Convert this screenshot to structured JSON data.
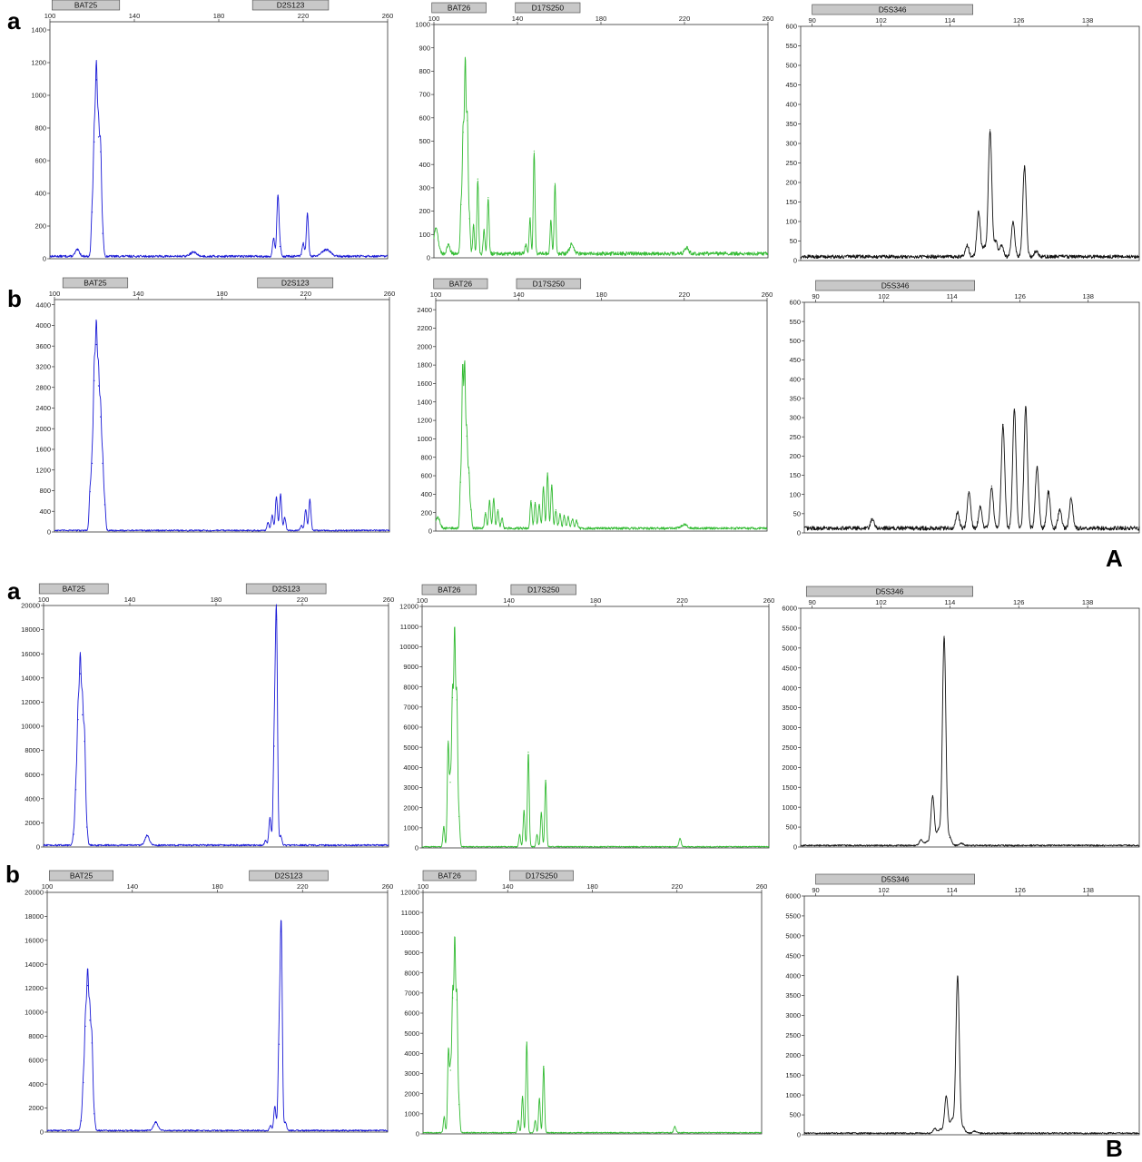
{
  "figure_labels": {
    "part_a": "A",
    "part_b": "B",
    "panels": [
      {
        "id": "A-a",
        "text": "a"
      },
      {
        "id": "A-b",
        "text": "b"
      },
      {
        "id": "B-a",
        "text": "a"
      },
      {
        "id": "B-b",
        "text": "b"
      }
    ]
  },
  "colors": {
    "blue": "#1a1ad6",
    "green": "#33bb33",
    "black": "#111111",
    "marker_fill": "#c8c8c8",
    "marker_stroke": "#555555"
  },
  "chart_data": [
    {
      "id": "A-a-1",
      "type": "line",
      "color": "blue",
      "xlim": [
        100,
        260
      ],
      "ylim": [
        0,
        1450
      ],
      "xticks": [
        100,
        140,
        180,
        220,
        260
      ],
      "yticks": [
        0,
        200,
        400,
        600,
        800,
        1000,
        1200,
        1400
      ],
      "markers": [
        {
          "label": "BAT25",
          "start": 101,
          "end": 133
        },
        {
          "label": "D2S123",
          "start": 196,
          "end": 232
        }
      ],
      "baseline": 15,
      "peaks": [
        [
          113,
          40,
          1.0
        ],
        [
          120,
          270,
          0.45
        ],
        [
          121,
          700,
          0.45
        ],
        [
          122,
          1080,
          0.45
        ],
        [
          123,
          730,
          0.45
        ],
        [
          124,
          640,
          0.45
        ],
        [
          125,
          140,
          0.45
        ],
        [
          168,
          25,
          1.5
        ],
        [
          206,
          110,
          0.5
        ],
        [
          208,
          370,
          0.5
        ],
        [
          209,
          60,
          0.5
        ],
        [
          220,
          80,
          0.5
        ],
        [
          222,
          260,
          0.5
        ],
        [
          231,
          40,
          2.0
        ]
      ]
    },
    {
      "id": "A-a-2",
      "type": "line",
      "color": "green",
      "xlim": [
        100,
        260
      ],
      "ylim": [
        0,
        1000
      ],
      "xticks": [
        100,
        140,
        180,
        220,
        260
      ],
      "yticks": [
        0,
        100,
        200,
        300,
        400,
        500,
        600,
        700,
        800,
        900,
        1000
      ],
      "markers": [
        {
          "label": "BAT26",
          "start": 99,
          "end": 125
        },
        {
          "label": "D17S250",
          "start": 139,
          "end": 170
        }
      ],
      "baseline": 18,
      "peaks": [
        [
          101,
          110,
          1.0
        ],
        [
          107,
          40,
          0.7
        ],
        [
          113,
          210,
          0.4
        ],
        [
          114,
          520,
          0.4
        ],
        [
          115,
          800,
          0.4
        ],
        [
          116,
          570,
          0.4
        ],
        [
          117,
          150,
          0.4
        ],
        [
          119,
          120,
          0.4
        ],
        [
          121,
          320,
          0.4
        ],
        [
          124,
          100,
          0.4
        ],
        [
          126,
          240,
          0.4
        ],
        [
          144,
          40,
          0.4
        ],
        [
          146,
          150,
          0.4
        ],
        [
          148,
          440,
          0.4
        ],
        [
          156,
          140,
          0.4
        ],
        [
          158,
          300,
          0.4
        ],
        [
          166,
          40,
          1.0
        ],
        [
          221,
          25,
          1.0
        ]
      ]
    },
    {
      "id": "A-a-3",
      "type": "line",
      "color": "black",
      "xlim": [
        88,
        147
      ],
      "ylim": [
        0,
        600
      ],
      "xticks": [
        90,
        102,
        114,
        126,
        138
      ],
      "yticks": [
        0,
        50,
        100,
        150,
        200,
        250,
        300,
        350,
        400,
        450,
        500,
        550,
        600
      ],
      "markers": [
        {
          "label": "D5S346",
          "start": 90,
          "end": 118
        }
      ],
      "baseline": 10,
      "peaks": [
        [
          117,
          30,
          0.3
        ],
        [
          119,
          115,
          0.3
        ],
        [
          120,
          25,
          0.3
        ],
        [
          121,
          325,
          0.3
        ],
        [
          122,
          40,
          0.3
        ],
        [
          123,
          30,
          0.3
        ],
        [
          125,
          90,
          0.3
        ],
        [
          127,
          230,
          0.3
        ],
        [
          129,
          15,
          0.3
        ]
      ]
    },
    {
      "id": "A-b-1",
      "type": "line",
      "color": "blue",
      "xlim": [
        100,
        260
      ],
      "ylim": [
        0,
        4500
      ],
      "xticks": [
        100,
        140,
        180,
        220,
        260
      ],
      "yticks": [
        0,
        400,
        800,
        1200,
        1600,
        2000,
        2400,
        2800,
        3200,
        3600,
        4000,
        4400
      ],
      "markers": [
        {
          "label": "BAT25",
          "start": 104,
          "end": 135
        },
        {
          "label": "D2S123",
          "start": 197,
          "end": 233
        }
      ],
      "baseline": 30,
      "peaks": [
        [
          117,
          750,
          0.45
        ],
        [
          118,
          1300,
          0.45
        ],
        [
          119,
          2900,
          0.45
        ],
        [
          120,
          3600,
          0.45
        ],
        [
          121,
          2800,
          0.45
        ],
        [
          122,
          2200,
          0.45
        ],
        [
          123,
          1300,
          0.45
        ],
        [
          124,
          500,
          0.45
        ],
        [
          202,
          150,
          0.5
        ],
        [
          204,
          300,
          0.5
        ],
        [
          206,
          650,
          0.5
        ],
        [
          208,
          700,
          0.5
        ],
        [
          210,
          250,
          0.5
        ],
        [
          218,
          100,
          0.5
        ],
        [
          220,
          400,
          0.5
        ],
        [
          222,
          600,
          0.5
        ]
      ]
    },
    {
      "id": "A-b-2",
      "type": "line",
      "color": "green",
      "xlim": [
        100,
        260
      ],
      "ylim": [
        0,
        2500
      ],
      "xticks": [
        100,
        140,
        180,
        220,
        260
      ],
      "yticks": [
        0,
        200,
        400,
        600,
        800,
        1000,
        1200,
        1400,
        1600,
        1800,
        2000,
        2200,
        2400
      ],
      "markers": [
        {
          "label": "BAT26",
          "start": 99,
          "end": 125
        },
        {
          "label": "D17S250",
          "start": 139,
          "end": 170
        }
      ],
      "baseline": 30,
      "peaks": [
        [
          101,
          120,
          1.0
        ],
        [
          112,
          500,
          0.4
        ],
        [
          113,
          1700,
          0.4
        ],
        [
          114,
          1700,
          0.4
        ],
        [
          115,
          1000,
          0.4
        ],
        [
          116,
          600,
          0.4
        ],
        [
          117,
          200,
          0.4
        ],
        [
          124,
          170,
          0.45
        ],
        [
          126,
          300,
          0.45
        ],
        [
          128,
          320,
          0.45
        ],
        [
          130,
          200,
          0.45
        ],
        [
          132,
          110,
          0.45
        ],
        [
          146,
          300,
          0.45
        ],
        [
          148,
          280,
          0.45
        ],
        [
          150,
          260,
          0.45
        ],
        [
          152,
          450,
          0.45
        ],
        [
          154,
          600,
          0.45
        ],
        [
          156,
          470,
          0.45
        ],
        [
          158,
          200,
          0.45
        ],
        [
          160,
          160,
          0.45
        ],
        [
          162,
          140,
          0.45
        ],
        [
          164,
          130,
          0.45
        ],
        [
          166,
          100,
          0.45
        ],
        [
          168,
          90,
          0.45
        ],
        [
          220,
          40,
          1.5
        ]
      ]
    },
    {
      "id": "A-b-3",
      "type": "line",
      "color": "black",
      "xlim": [
        88,
        147
      ],
      "ylim": [
        0,
        600
      ],
      "xticks": [
        90,
        102,
        114,
        126,
        138
      ],
      "yticks": [
        0,
        50,
        100,
        150,
        200,
        250,
        300,
        350,
        400,
        450,
        500,
        550,
        600
      ],
      "markers": [
        {
          "label": "D5S346",
          "start": 90,
          "end": 118
        }
      ],
      "baseline": 12,
      "peaks": [
        [
          100,
          25,
          0.3
        ],
        [
          115,
          40,
          0.3
        ],
        [
          117,
          95,
          0.3
        ],
        [
          119,
          55,
          0.3
        ],
        [
          121,
          110,
          0.3
        ],
        [
          123,
          270,
          0.3
        ],
        [
          125,
          310,
          0.3
        ],
        [
          127,
          315,
          0.3
        ],
        [
          129,
          160,
          0.3
        ],
        [
          131,
          95,
          0.3
        ],
        [
          133,
          50,
          0.3
        ],
        [
          135,
          80,
          0.3
        ]
      ]
    },
    {
      "id": "B-a-1",
      "type": "line",
      "color": "blue",
      "xlim": [
        100,
        260
      ],
      "ylim": [
        0,
        20000
      ],
      "xticks": [
        100,
        140,
        180,
        220,
        260
      ],
      "yticks": [
        0,
        2000,
        4000,
        6000,
        8000,
        10000,
        12000,
        14000,
        16000,
        18000,
        20000
      ],
      "markers": [
        {
          "label": "BAT25",
          "start": 98,
          "end": 130
        },
        {
          "label": "D2S123",
          "start": 194,
          "end": 231
        }
      ],
      "baseline": 150,
      "peaks": [
        [
          114,
          900,
          0.45
        ],
        [
          115,
          4600,
          0.45
        ],
        [
          116,
          10400,
          0.45
        ],
        [
          117,
          14200,
          0.45
        ],
        [
          118,
          10800,
          0.45
        ],
        [
          119,
          8600,
          0.45
        ],
        [
          120,
          1500,
          0.45
        ],
        [
          148,
          800,
          1.0
        ],
        [
          203,
          400,
          0.5
        ],
        [
          205,
          2300,
          0.5
        ],
        [
          207,
          8200,
          0.5
        ],
        [
          208,
          18700,
          0.5
        ],
        [
          210,
          800,
          0.5
        ]
      ]
    },
    {
      "id": "B-a-2",
      "type": "line",
      "color": "green",
      "xlim": [
        100,
        260
      ],
      "ylim": [
        0,
        12000
      ],
      "xticks": [
        100,
        140,
        180,
        220,
        260
      ],
      "yticks": [
        0,
        1000,
        2000,
        3000,
        4000,
        5000,
        6000,
        7000,
        8000,
        9000,
        10000,
        11000,
        12000
      ],
      "markers": [
        {
          "label": "BAT26",
          "start": 100,
          "end": 125
        },
        {
          "label": "D17S250",
          "start": 141,
          "end": 171
        }
      ],
      "baseline": 60,
      "peaks": [
        [
          110,
          1000,
          0.4
        ],
        [
          112,
          5100,
          0.4
        ],
        [
          113,
          3200,
          0.4
        ],
        [
          114,
          7400,
          0.4
        ],
        [
          115,
          10400,
          0.4
        ],
        [
          116,
          7300,
          0.4
        ],
        [
          117,
          1500,
          0.4
        ],
        [
          145,
          600,
          0.4
        ],
        [
          147,
          1800,
          0.4
        ],
        [
          149,
          4700,
          0.4
        ],
        [
          153,
          600,
          0.4
        ],
        [
          155,
          1700,
          0.4
        ],
        [
          157,
          3300,
          0.4
        ],
        [
          219,
          400,
          0.5
        ]
      ]
    },
    {
      "id": "B-a-3",
      "type": "line",
      "color": "black",
      "xlim": [
        88,
        147
      ],
      "ylim": [
        0,
        6000
      ],
      "xticks": [
        90,
        102,
        114,
        126,
        138
      ],
      "yticks": [
        0,
        500,
        1000,
        1500,
        2000,
        2500,
        3000,
        3500,
        4000,
        4500,
        5000,
        5500,
        6000
      ],
      "markers": [
        {
          "label": "D5S346",
          "start": 89,
          "end": 118
        }
      ],
      "baseline": 40,
      "peaks": [
        [
          109,
          150,
          0.3
        ],
        [
          110,
          100,
          0.3
        ],
        [
          111,
          1250,
          0.3
        ],
        [
          112,
          400,
          0.3
        ],
        [
          113,
          5250,
          0.3
        ],
        [
          114,
          200,
          0.3
        ],
        [
          116,
          60,
          0.3
        ]
      ]
    },
    {
      "id": "B-b-1",
      "type": "line",
      "color": "blue",
      "xlim": [
        100,
        260
      ],
      "ylim": [
        0,
        20000
      ],
      "xticks": [
        100,
        140,
        180,
        220,
        260
      ],
      "yticks": [
        0,
        2000,
        4000,
        6000,
        8000,
        10000,
        12000,
        14000,
        16000,
        18000,
        20000
      ],
      "markers": [
        {
          "label": "BAT25",
          "start": 101,
          "end": 131
        },
        {
          "label": "D2S123",
          "start": 195,
          "end": 232
        }
      ],
      "baseline": 130,
      "peaks": [
        [
          116,
          800,
          0.45
        ],
        [
          117,
          4000,
          0.45
        ],
        [
          118,
          8700,
          0.45
        ],
        [
          119,
          12100,
          0.45
        ],
        [
          120,
          9200,
          0.45
        ],
        [
          121,
          7300,
          0.45
        ],
        [
          122,
          1400,
          0.45
        ],
        [
          151,
          700,
          1.0
        ],
        [
          205,
          400,
          0.5
        ],
        [
          207,
          2000,
          0.5
        ],
        [
          209,
          7200,
          0.5
        ],
        [
          210,
          16600,
          0.5
        ],
        [
          212,
          700,
          0.5
        ]
      ]
    },
    {
      "id": "B-b-2",
      "type": "line",
      "color": "green",
      "xlim": [
        100,
        260
      ],
      "ylim": [
        0,
        12000
      ],
      "xticks": [
        100,
        140,
        180,
        220,
        260
      ],
      "yticks": [
        0,
        1000,
        2000,
        3000,
        4000,
        5000,
        6000,
        7000,
        8000,
        9000,
        10000,
        11000,
        12000
      ],
      "markers": [
        {
          "label": "BAT26",
          "start": 100,
          "end": 125
        },
        {
          "label": "D17S250",
          "start": 141,
          "end": 171
        }
      ],
      "baseline": 60,
      "peaks": [
        [
          110,
          800,
          0.4
        ],
        [
          112,
          4100,
          0.4
        ],
        [
          113,
          3100,
          0.4
        ],
        [
          114,
          6700,
          0.4
        ],
        [
          115,
          9300,
          0.4
        ],
        [
          116,
          6600,
          0.4
        ],
        [
          117,
          1400,
          0.4
        ],
        [
          145,
          600,
          0.4
        ],
        [
          147,
          1800,
          0.4
        ],
        [
          149,
          4500,
          0.4
        ],
        [
          153,
          600,
          0.4
        ],
        [
          155,
          1700,
          0.4
        ],
        [
          157,
          3300,
          0.4
        ],
        [
          219,
          300,
          0.5
        ]
      ]
    },
    {
      "id": "B-b-3",
      "type": "line",
      "color": "black",
      "xlim": [
        88,
        147
      ],
      "ylim": [
        0,
        6000
      ],
      "xticks": [
        90,
        102,
        114,
        126,
        138
      ],
      "yticks": [
        0,
        500,
        1000,
        1500,
        2000,
        2500,
        3000,
        3500,
        4000,
        4500,
        5000,
        5500,
        6000
      ],
      "markers": [
        {
          "label": "D5S346",
          "start": 90,
          "end": 118
        }
      ],
      "baseline": 40,
      "peaks": [
        [
          111,
          120,
          0.3
        ],
        [
          112,
          100,
          0.3
        ],
        [
          113,
          930,
          0.3
        ],
        [
          114,
          350,
          0.3
        ],
        [
          115,
          3950,
          0.3
        ],
        [
          116,
          150,
          0.3
        ],
        [
          118,
          50,
          0.3
        ]
      ]
    }
  ]
}
